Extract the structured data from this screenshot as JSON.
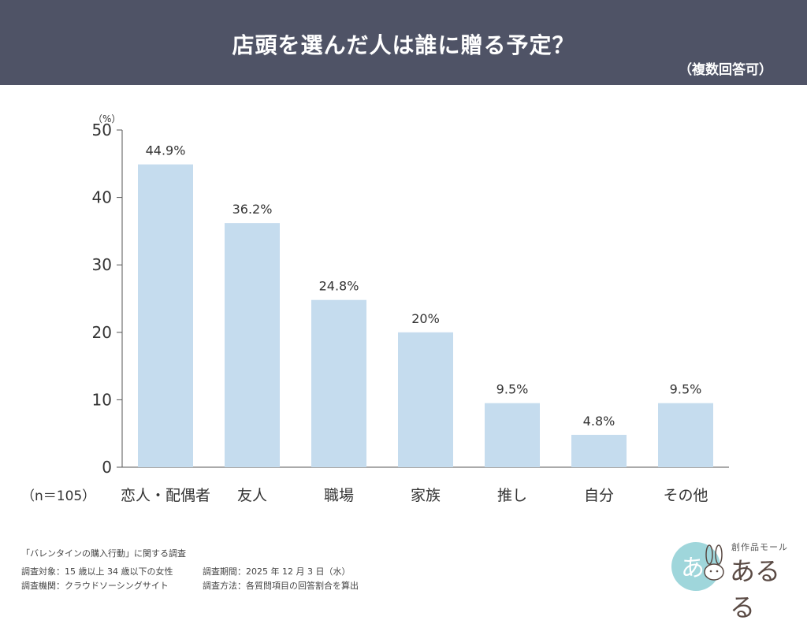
{
  "header": {
    "title": "店頭を選んだ人は誰に贈る予定？",
    "subtitle": "（複数回答可）"
  },
  "chart_data": {
    "type": "bar",
    "categories": [
      "恋人・配偶者",
      "友人",
      "職場",
      "家族",
      "推し",
      "自分",
      "その他"
    ],
    "values": [
      44.9,
      36.2,
      24.8,
      20,
      9.5,
      4.8,
      9.5
    ],
    "value_labels": [
      "44.9%",
      "36.2%",
      "24.8%",
      "20%",
      "9.5%",
      "4.8%",
      "9.5%"
    ],
    "y_unit": "（%）",
    "ylim": [
      0,
      50
    ],
    "yticks": [
      0,
      10,
      20,
      30,
      40,
      50
    ],
    "sample_note": "（n＝105）",
    "grid": false,
    "bar_color": "#c5dcee"
  },
  "footer": {
    "survey_name": "「バレンタインの購入行動」に関する調査",
    "target": "調査対象：15 歳以上 34 歳以下の女性",
    "period": "調査期間：2025 年 12 月 3 日（水）",
    "agency": "調査機関：クラウドソーシングサイト",
    "method": "調査方法：各質問項目の回答割合を算出"
  },
  "logo": {
    "tagline": "創作品モール",
    "name": "あるる",
    "badge_text": "あ",
    "icon": "rabbit-logo-icon",
    "badge_color": "#9fd6db"
  }
}
